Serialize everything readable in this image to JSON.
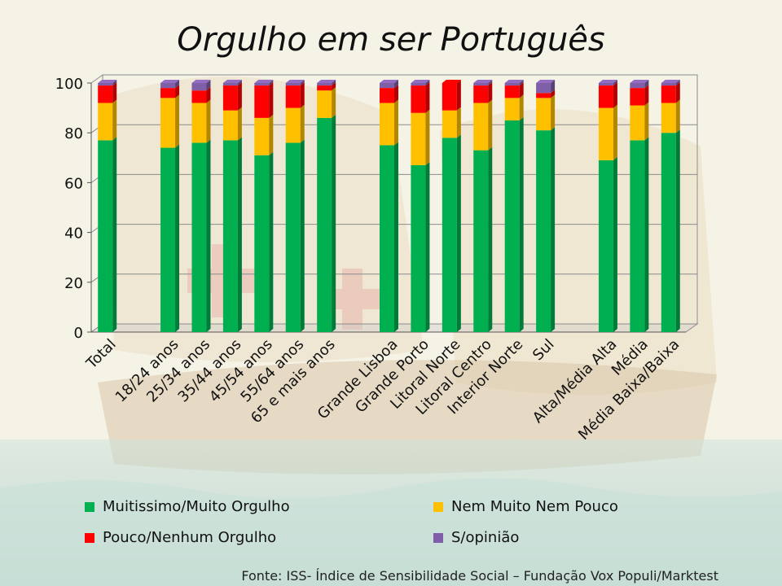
{
  "page": {
    "title": "Orgulho  em ser Português",
    "source": "Fonte: ISS- Índice de Sensibilidade Social – Fundação Vox Populi/Marktest"
  },
  "colors": {
    "Muitissimo/Muito Orgulho": "#00b050",
    "Nem Muito Nem Pouco": "#ffc000",
    "Pouco/Nenhum Orgulho": "#ff0000",
    "S/opinião": "#7f5fa8"
  },
  "chart_data": {
    "type": "bar",
    "stacked": true,
    "title": "Orgulho  em ser Português",
    "xlabel": "",
    "ylabel": "",
    "ylim": [
      0,
      100
    ],
    "yticks": [
      0,
      20,
      40,
      60,
      80,
      100
    ],
    "grid": true,
    "legend": "bottom",
    "categories": [
      "Total",
      "",
      "18/24 anos",
      "25/34 anos",
      "35/44 anos",
      "45/54 anos",
      "55/64 anos",
      "65 e mais anos",
      "",
      "Grande Lisboa",
      "Grande Porto",
      "Litoral Norte",
      "Litoral Centro",
      "Interior Norte",
      "Sul",
      "",
      "Alta/Média Alta",
      "Média",
      "Média Baixa/Baixa"
    ],
    "series": [
      {
        "name": "Muitissimo/Muito Orgulho",
        "values": [
          77,
          null,
          74,
          76,
          77,
          71,
          76,
          86,
          null,
          75,
          67,
          78,
          73,
          85,
          81,
          null,
          69,
          77,
          80
        ]
      },
      {
        "name": "Nem Muito Nem Pouco",
        "values": [
          15,
          null,
          20,
          16,
          12,
          15,
          14,
          11,
          null,
          17,
          21,
          11,
          19,
          9,
          13,
          null,
          21,
          14,
          12
        ]
      },
      {
        "name": "Pouco/Nenhum Orgulho",
        "values": [
          7,
          null,
          4,
          5,
          10,
          13,
          9,
          2,
          null,
          6,
          11,
          11,
          7,
          5,
          2,
          null,
          9,
          7,
          7
        ]
      },
      {
        "name": "S/opinião",
        "values": [
          1,
          null,
          2,
          3,
          1,
          1,
          1,
          1,
          null,
          2,
          1,
          0,
          1,
          1,
          4,
          null,
          1,
          2,
          1
        ]
      }
    ]
  }
}
